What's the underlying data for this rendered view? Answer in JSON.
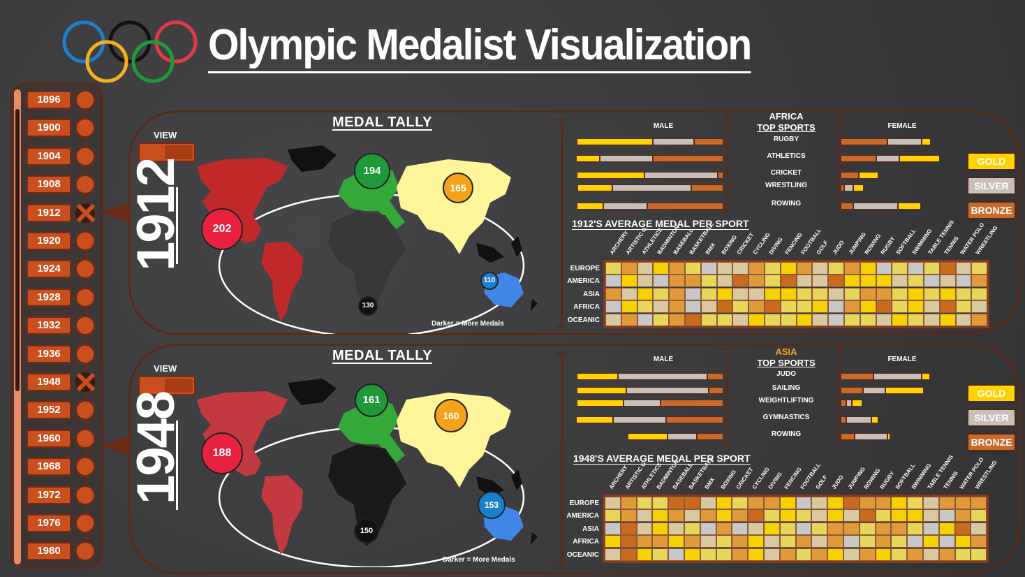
{
  "header": {
    "title": "Olympic Medalist Visualization"
  },
  "colors": {
    "ring_blue": "#1b7fc9",
    "ring_black": "#111111",
    "ring_red": "#e23a44",
    "ring_yellow": "#f4b21a",
    "ring_green": "#1f9a3a",
    "gold": "#ffd200",
    "silver": "#c8c0b8",
    "bronze": "#c96a2a",
    "timeline_orange": "#c9501e"
  },
  "timeline": {
    "years": [
      "1896",
      "1900",
      "1904",
      "1908",
      "1912",
      "1920",
      "1924",
      "1928",
      "1932",
      "1936",
      "1948",
      "1952",
      "1960",
      "1968",
      "1972",
      "1976",
      "1980"
    ],
    "selected": [
      "1912",
      "1948"
    ]
  },
  "legend": {
    "gold": "GOLD",
    "silver": "SILVER",
    "bronze": "BRONZE"
  },
  "heatmap_columns": [
    "ARCHERY",
    "ARTISTIC G.",
    "ATHLETICS",
    "BADMINTON",
    "BASEBALL",
    "BASKETBALL",
    "BMX",
    "BOXING",
    "CRICKET",
    "CYCLING",
    "DIVING",
    "FENCING",
    "FOOTBALL",
    "GOLF",
    "JUDO",
    "JUMPING",
    "ROWING",
    "RUGBY",
    "SOFTBALL",
    "SWIMMING",
    "TABLE TENNIS",
    "TENNIS",
    "WATER POLO",
    "WRESTLING"
  ],
  "heatmap_rows": [
    "EUROPE",
    "AMERICA",
    "ASIA",
    "AFRICA",
    "OCEANIC"
  ],
  "panels": [
    {
      "year": "1912",
      "view_label": "VIEW",
      "medal_tally_title": "MEDAL TALLY",
      "note": "Darker = More Medals",
      "tally": {
        "america": "202",
        "europe": "194",
        "asia": "165",
        "africa": "130",
        "oceania": "110"
      },
      "region": "AFRICA",
      "top_sports_title": "TOP SPORTS",
      "male_label": "MALE",
      "female_label": "FEMALE",
      "sports": [
        "RUGBY",
        "ATHLETICS",
        "CRICKET",
        "WRESTLING",
        "ROWING"
      ],
      "male_bars": [
        [
          0.52,
          0.28,
          0.2
        ],
        [
          0.16,
          0.36,
          0.48
        ],
        [
          0.46,
          0.5,
          0.04
        ],
        [
          0.24,
          0.54,
          0.22
        ],
        [
          0.18,
          0.3,
          0.52
        ]
      ],
      "female_bars": [
        [
          0.1,
          0.38,
          0.52
        ],
        [
          0.45,
          0.26,
          0.4
        ],
        [
          0.22,
          0.0,
          0.2
        ],
        [
          0.12,
          0.1,
          0.04
        ],
        [
          0.26,
          0.5,
          0.14
        ]
      ],
      "heatmap_title": "1912'S AVERAGE MEDAL PER SPORT",
      "heatmap": [
        [
          2,
          4,
          1,
          3,
          4,
          2,
          0,
          1,
          1,
          4,
          2,
          3,
          4,
          1,
          2,
          4,
          3,
          0,
          2,
          0,
          2,
          5,
          1,
          2
        ],
        [
          0,
          3,
          1,
          0,
          4,
          4,
          2,
          1,
          5,
          4,
          2,
          5,
          1,
          1,
          5,
          3,
          3,
          3,
          1,
          2,
          0,
          1,
          0,
          4
        ],
        [
          4,
          1,
          3,
          2,
          4,
          0,
          2,
          3,
          1,
          1,
          3,
          3,
          2,
          2,
          1,
          2,
          4,
          4,
          2,
          3,
          2,
          3,
          2,
          2
        ],
        [
          0,
          3,
          2,
          1,
          4,
          0,
          1,
          5,
          2,
          4,
          5,
          2,
          2,
          3,
          0,
          4,
          3,
          5,
          2,
          3,
          1,
          5,
          2,
          1
        ],
        [
          1,
          4,
          0,
          2,
          4,
          5,
          2,
          2,
          1,
          3,
          2,
          2,
          3,
          1,
          0,
          2,
          2,
          1,
          3,
          2,
          1,
          3,
          1,
          4
        ]
      ]
    },
    {
      "year": "1948",
      "view_label": "VIEW",
      "medal_tally_title": "MEDAL TALLY",
      "note": "Darker = More Medals",
      "tally": {
        "america": "188",
        "europe": "161",
        "asia": "160",
        "africa": "150",
        "oceania": "153"
      },
      "region": "ASIA",
      "top_sports_title": "TOP SPORTS",
      "male_label": "MALE",
      "female_label": "FEMALE",
      "sports": [
        "JUDO",
        "SAILING",
        "WEIGHTLIFTING",
        "GYMNASTICS",
        "ROWING"
      ],
      "male_bars": [
        [
          0.28,
          0.61,
          0.11
        ],
        [
          0.34,
          0.56,
          0.1
        ],
        [
          0.32,
          0.25,
          0.43
        ],
        [
          0.25,
          0.36,
          0.39
        ],
        [
          0.27,
          0.2,
          0.18
        ]
      ],
      "female_bars": [
        [
          0.09,
          0.54,
          0.37
        ],
        [
          0.43,
          0.25,
          0.25
        ],
        [
          0.12,
          0.06,
          0.06
        ],
        [
          0.08,
          0.28,
          0.06
        ],
        [
          0.03,
          0.37,
          0.16
        ]
      ],
      "heatmap_title": "1948'S AVERAGE MEDAL PER SPORT",
      "heatmap": [
        [
          1,
          4,
          2,
          2,
          5,
          5,
          1,
          3,
          2,
          4,
          4,
          3,
          0,
          1,
          3,
          5,
          4,
          4,
          3,
          2,
          1,
          4,
          4,
          4
        ],
        [
          2,
          4,
          1,
          3,
          4,
          1,
          4,
          3,
          4,
          5,
          2,
          3,
          2,
          1,
          3,
          1,
          5,
          2,
          3,
          3,
          1,
          0,
          4,
          2
        ],
        [
          0,
          5,
          1,
          3,
          1,
          2,
          0,
          4,
          0,
          1,
          3,
          2,
          0,
          2,
          4,
          4,
          2,
          4,
          4,
          2,
          0,
          3,
          5,
          1
        ],
        [
          3,
          5,
          4,
          4,
          3,
          4,
          1,
          2,
          4,
          3,
          1,
          2,
          4,
          1,
          4,
          0,
          2,
          4,
          2,
          0,
          3,
          0,
          3,
          4
        ],
        [
          1,
          5,
          3,
          2,
          0,
          3,
          2,
          2,
          4,
          3,
          1,
          4,
          2,
          4,
          3,
          1,
          4,
          3,
          2,
          4,
          1,
          4,
          2,
          2
        ]
      ]
    }
  ]
}
